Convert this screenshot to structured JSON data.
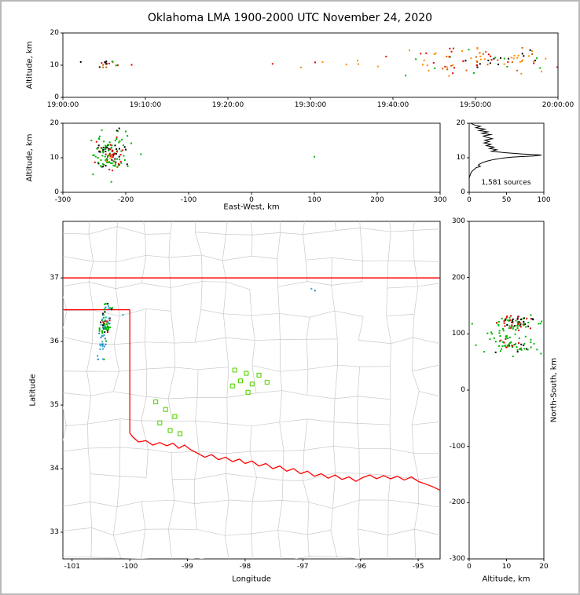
{
  "title": "Oklahoma LMA 1900-2000 UTC November 24, 2020",
  "frame": {
    "background": "#ffffff",
    "border_color": "#b9b9b9"
  },
  "palette": {
    "green": "#00b400",
    "station": "#55d400",
    "blue": "#1f77b4",
    "cyan": "#2aa5d8",
    "orange": "#ff8c00",
    "dark_orange": "#cc5c00",
    "red": "#e00000",
    "black": "#000000",
    "county": "#c9c9c9",
    "state": "#ff0000",
    "hist": "#000000"
  },
  "chart_data": [
    {
      "id": "time_height",
      "type": "scatter",
      "xlabel": "",
      "ylabel": "Altitude, km",
      "xlim": [
        0,
        3600
      ],
      "ylim": [
        0,
        20
      ],
      "xticks": {
        "values": [
          0,
          600,
          1200,
          1800,
          2400,
          3000,
          3600
        ],
        "labels": [
          "19:00:00",
          "19:10:00",
          "19:20:00",
          "19:30:00",
          "19:40:00",
          "19:50:00",
          "20:00:00"
        ]
      },
      "yticks": {
        "values": [
          0,
          10,
          20
        ],
        "labels": [
          "0",
          "10",
          "20"
        ]
      },
      "clusters": [
        {
          "cx": 300,
          "cy": 10.2,
          "sx": 55,
          "sy": 0.8,
          "n": 15,
          "colors": [
            "black",
            "red",
            "green",
            "dark_orange"
          ],
          "weights": [
            0.4,
            0.3,
            0.15,
            0.15
          ]
        },
        {
          "cx": 2050,
          "cy": 10.5,
          "sx": 220,
          "sy": 1.0,
          "n": 7,
          "colors": [
            "orange",
            "red"
          ],
          "weights": [
            0.6,
            0.4
          ]
        },
        {
          "cx": 3060,
          "cy": 11.5,
          "sx": 290,
          "sy": 1.9,
          "n": 95,
          "colors": [
            "orange",
            "dark_orange",
            "red",
            "black",
            "green"
          ],
          "weights": [
            0.36,
            0.2,
            0.18,
            0.16,
            0.1
          ]
        }
      ],
      "points": [
        [
          130,
          11.0,
          "black"
        ],
        [
          500,
          10.1,
          "red"
        ],
        [
          2520,
          14.6,
          "orange"
        ],
        [
          2840,
          15.2,
          "red"
        ],
        [
          3340,
          15.4,
          "dark_orange"
        ],
        [
          3480,
          8.0,
          "orange"
        ]
      ]
    },
    {
      "id": "ew_height",
      "type": "scatter",
      "xlabel": "East-West, km",
      "ylabel": "Altitude, km",
      "xlim": [
        -300,
        300
      ],
      "ylim": [
        0,
        20
      ],
      "xticks": {
        "values": [
          -300,
          -200,
          -100,
          0,
          100,
          200,
          300
        ],
        "labels": [
          "-300",
          "-200",
          "-100",
          "0",
          "100",
          "200",
          "300"
        ]
      },
      "yticks": {
        "values": [
          0,
          10,
          20
        ],
        "labels": [
          "0",
          "10",
          "20"
        ]
      },
      "clusters": [
        {
          "cx": -224,
          "cy": 11,
          "sx": 9,
          "sy": 2,
          "n": 85,
          "colors": [
            "green",
            "red",
            "black",
            "orange"
          ],
          "weights": [
            0.45,
            0.25,
            0.22,
            0.08
          ]
        },
        {
          "cx": -226,
          "cy": 11,
          "sx": 20,
          "sy": 3.6,
          "n": 55,
          "colors": [
            "green",
            "black",
            "red"
          ],
          "weights": [
            0.78,
            0.12,
            0.1
          ]
        }
      ],
      "points": [
        [
          100,
          10.3,
          "green"
        ],
        [
          -252,
          5.2,
          "green"
        ],
        [
          -200,
          17.6,
          "green"
        ],
        [
          -238,
          18.0,
          "green"
        ]
      ]
    },
    {
      "id": "alt_histogram",
      "type": "line",
      "xlabel": "",
      "ylabel": "",
      "annotation": "1,581 sources",
      "xlim": [
        0,
        100
      ],
      "ylim": [
        0,
        20
      ],
      "xticks": {
        "values": [
          0,
          50,
          100
        ],
        "labels": [
          "0",
          "50",
          "100"
        ]
      },
      "yticks": {
        "values": [
          0,
          10,
          20
        ],
        "labels": [
          "0",
          "10",
          "20"
        ]
      },
      "profile_counts_by_altitude": [
        [
          2,
          20
        ],
        [
          7,
          19.5
        ],
        [
          15,
          19.1
        ],
        [
          9,
          18.7
        ],
        [
          21,
          18.3
        ],
        [
          13,
          17.9
        ],
        [
          25,
          17.5
        ],
        [
          17,
          17.1
        ],
        [
          29,
          16.7
        ],
        [
          19,
          16.3
        ],
        [
          24,
          15.9
        ],
        [
          31,
          15.5
        ],
        [
          21,
          15.1
        ],
        [
          27,
          14.7
        ],
        [
          20,
          14.3
        ],
        [
          29,
          13.9
        ],
        [
          23,
          13.5
        ],
        [
          33,
          13.1
        ],
        [
          27,
          12.7
        ],
        [
          37,
          12.3
        ],
        [
          30,
          11.9
        ],
        [
          46,
          11.5
        ],
        [
          70,
          11.1
        ],
        [
          97,
          10.8
        ],
        [
          86,
          10.5
        ],
        [
          58,
          10.2
        ],
        [
          44,
          9.9
        ],
        [
          33,
          9.5
        ],
        [
          25,
          9.1
        ],
        [
          19,
          8.7
        ],
        [
          15,
          8.3
        ],
        [
          12,
          7.9
        ],
        [
          15,
          7.5
        ],
        [
          9,
          7.1
        ],
        [
          7,
          6.7
        ],
        [
          5,
          6.3
        ],
        [
          3,
          5.9
        ],
        [
          2,
          5.4
        ],
        [
          1,
          4.8
        ],
        [
          0,
          4.2
        ],
        [
          0,
          0.2
        ]
      ]
    },
    {
      "id": "plan_view",
      "type": "scatter",
      "xlabel": "Longitude",
      "ylabel": "Latitude",
      "xlim": [
        -101.16,
        -94.62
      ],
      "ylim": [
        32.58,
        37.89
      ],
      "xticks": {
        "values": [
          -101,
          -100,
          -99,
          -98,
          -97,
          -96,
          -95
        ],
        "labels": [
          "-101",
          "-100",
          "-99",
          "-98",
          "-97",
          "-96",
          "-95"
        ]
      },
      "yticks": {
        "values": [
          33,
          34,
          35,
          36,
          37
        ],
        "labels": [
          "33",
          "34",
          "35",
          "36",
          "37"
        ]
      },
      "county_mesh": {
        "lon_step": 0.47,
        "lat_step": 0.43,
        "jitter": 0.14,
        "seed": 13
      },
      "state_boundary": [
        [
          [
            -101.16,
            37.0
          ],
          [
            -94.62,
            37.0
          ]
        ],
        [
          [
            -101.16,
            36.5
          ],
          [
            -100.0,
            36.5
          ]
        ],
        [
          [
            -100.0,
            36.5
          ],
          [
            -100.0,
            34.56
          ]
        ],
        [
          [
            -100.0,
            34.56
          ],
          [
            -99.95,
            34.5
          ],
          [
            -99.85,
            34.42
          ],
          [
            -99.72,
            34.44
          ],
          [
            -99.6,
            34.37
          ],
          [
            -99.48,
            34.41
          ],
          [
            -99.36,
            34.36
          ],
          [
            -99.25,
            34.4
          ],
          [
            -99.15,
            34.32
          ],
          [
            -99.05,
            34.37
          ],
          [
            -98.95,
            34.3
          ],
          [
            -98.82,
            34.24
          ],
          [
            -98.7,
            34.18
          ],
          [
            -98.58,
            34.22
          ],
          [
            -98.46,
            34.14
          ],
          [
            -98.34,
            34.18
          ],
          [
            -98.22,
            34.11
          ],
          [
            -98.1,
            34.15
          ],
          [
            -98.0,
            34.08
          ],
          [
            -97.88,
            34.12
          ],
          [
            -97.76,
            34.04
          ],
          [
            -97.64,
            34.08
          ],
          [
            -97.52,
            34.0
          ],
          [
            -97.4,
            34.04
          ],
          [
            -97.28,
            33.96
          ],
          [
            -97.16,
            34.0
          ],
          [
            -97.04,
            33.92
          ],
          [
            -96.92,
            33.96
          ],
          [
            -96.8,
            33.88
          ],
          [
            -96.68,
            33.92
          ],
          [
            -96.56,
            33.85
          ],
          [
            -96.44,
            33.9
          ],
          [
            -96.32,
            33.83
          ],
          [
            -96.2,
            33.87
          ],
          [
            -96.08,
            33.8
          ],
          [
            -95.96,
            33.86
          ],
          [
            -95.84,
            33.9
          ],
          [
            -95.72,
            33.84
          ],
          [
            -95.6,
            33.89
          ],
          [
            -95.48,
            33.84
          ],
          [
            -95.36,
            33.88
          ],
          [
            -95.24,
            33.82
          ],
          [
            -95.12,
            33.87
          ],
          [
            -95.0,
            33.8
          ],
          [
            -94.88,
            33.76
          ],
          [
            -94.76,
            33.72
          ],
          [
            -94.62,
            33.66
          ]
        ]
      ],
      "stations": [
        [
          -98.18,
          35.55
        ],
        [
          -97.98,
          35.5
        ],
        [
          -97.76,
          35.47
        ],
        [
          -98.08,
          35.38
        ],
        [
          -97.88,
          35.33
        ],
        [
          -97.62,
          35.36
        ],
        [
          -98.22,
          35.3
        ],
        [
          -97.95,
          35.2
        ],
        [
          -99.55,
          35.05
        ],
        [
          -99.38,
          34.93
        ],
        [
          -99.22,
          34.82
        ],
        [
          -99.48,
          34.72
        ],
        [
          -99.3,
          34.6
        ],
        [
          -99.13,
          34.55
        ]
      ],
      "clusters": [
        {
          "cx": -100.42,
          "cy": 36.27,
          "sx": 0.05,
          "sy": 0.1,
          "n": 60,
          "colors": [
            "green",
            "red",
            "black",
            "cyan"
          ],
          "weights": [
            0.38,
            0.26,
            0.18,
            0.18
          ]
        },
        {
          "cx": -100.48,
          "cy": 35.96,
          "sx": 0.045,
          "sy": 0.13,
          "n": 20,
          "colors": [
            "cyan",
            "blue",
            "green"
          ],
          "weights": [
            0.55,
            0.25,
            0.2
          ]
        },
        {
          "cx": -100.37,
          "cy": 36.52,
          "sx": 0.05,
          "sy": 0.05,
          "n": 10,
          "colors": [
            "cyan",
            "green",
            "black"
          ],
          "weights": [
            0.5,
            0.3,
            0.2
          ]
        }
      ],
      "points": [
        [
          -96.85,
          36.83,
          "cyan"
        ],
        [
          -96.79,
          36.8,
          "blue"
        ],
        [
          -100.12,
          36.42,
          "cyan"
        ],
        [
          -100.55,
          35.72,
          "blue"
        ]
      ]
    },
    {
      "id": "ns_height",
      "type": "scatter",
      "xlabel": "Altitude, km",
      "ylabel": "North-South, km",
      "xlim": [
        0,
        20
      ],
      "ylim": [
        -300,
        300
      ],
      "xticks": {
        "values": [
          0,
          10,
          20
        ],
        "labels": [
          "0",
          "10",
          "20"
        ]
      },
      "yticks": {
        "values": [
          300,
          200,
          100,
          0,
          -100,
          -200,
          -300
        ],
        "labels": [
          "300",
          "200",
          "100",
          "0",
          "-100",
          "-200",
          "-300"
        ]
      },
      "clusters": [
        {
          "cx": 11.5,
          "cy": 120,
          "sx": 2.6,
          "sy": 9,
          "n": 70,
          "colors": [
            "green",
            "red",
            "black"
          ],
          "weights": [
            0.5,
            0.28,
            0.22
          ]
        },
        {
          "cx": 11,
          "cy": 78,
          "sx": 2.6,
          "sy": 7,
          "n": 40,
          "colors": [
            "green",
            "red",
            "black"
          ],
          "weights": [
            0.6,
            0.2,
            0.2
          ]
        },
        {
          "cx": 11,
          "cy": 102,
          "sx": 4.5,
          "sy": 16,
          "n": 35,
          "colors": [
            "green"
          ],
          "weights": [
            1
          ]
        }
      ],
      "points": [
        [
          18.6,
          118,
          "green"
        ],
        [
          19.4,
          122,
          "green"
        ],
        [
          1.8,
          80,
          "green"
        ],
        [
          0.8,
          118,
          "green"
        ]
      ]
    }
  ]
}
